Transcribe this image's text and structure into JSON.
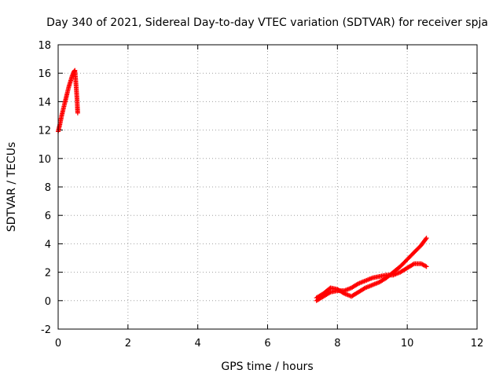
{
  "chart_data": {
    "type": "scatter",
    "title": "Day 340 of 2021, Sidereal Day-to-day VTEC variation (SDTVAR) for receiver spja",
    "xlabel": "GPS time / hours",
    "ylabel": "SDTVAR / TECUs",
    "xlim": [
      0,
      12
    ],
    "ylim": [
      -2,
      18
    ],
    "xticks": [
      0,
      2,
      4,
      6,
      8,
      10,
      12
    ],
    "yticks": [
      -2,
      0,
      2,
      4,
      6,
      8,
      10,
      12,
      14,
      16,
      18
    ],
    "grid": true,
    "marker": "plus",
    "color": "#ff0000",
    "segments": [
      {
        "x": [
          0.0,
          0.05,
          0.1,
          0.15,
          0.2,
          0.25,
          0.3,
          0.35,
          0.4,
          0.45,
          0.48
        ],
        "y": [
          11.9,
          12.4,
          13.0,
          13.5,
          14.0,
          14.5,
          15.0,
          15.4,
          15.8,
          16.1,
          16.2
        ]
      },
      {
        "x": [
          0.48,
          0.5,
          0.52,
          0.54,
          0.56
        ],
        "y": [
          16.1,
          15.6,
          14.9,
          14.2,
          13.2
        ]
      },
      {
        "x": [
          7.4,
          7.6,
          7.8,
          8.0,
          8.2,
          8.4,
          8.6,
          8.8,
          9.0,
          9.2,
          9.4,
          9.6,
          9.8,
          10.0,
          10.2,
          10.4,
          10.55
        ],
        "y": [
          0.2,
          0.5,
          0.9,
          0.8,
          0.5,
          0.3,
          0.6,
          0.9,
          1.1,
          1.3,
          1.6,
          2.0,
          2.4,
          2.9,
          3.4,
          3.9,
          4.4
        ]
      },
      {
        "x": [
          7.4,
          7.6,
          7.8,
          8.0,
          8.2,
          8.4,
          8.6,
          8.8,
          9.0,
          9.2,
          9.4,
          9.6,
          9.8,
          10.0,
          10.2,
          10.4,
          10.55
        ],
        "y": [
          0.0,
          0.3,
          0.6,
          0.7,
          0.7,
          0.9,
          1.2,
          1.4,
          1.6,
          1.7,
          1.8,
          1.8,
          2.0,
          2.3,
          2.6,
          2.6,
          2.4
        ]
      }
    ]
  }
}
